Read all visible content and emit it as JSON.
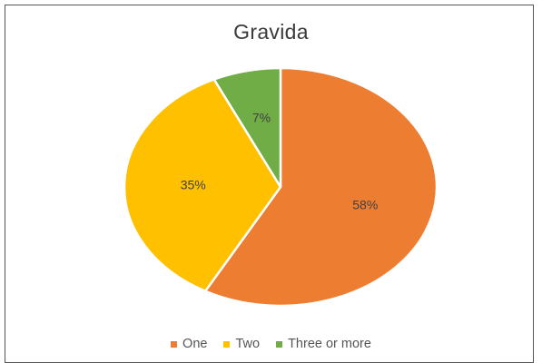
{
  "chart_data": {
    "type": "pie",
    "title": "Gravida",
    "categories": [
      "One",
      "Two",
      "Three or more"
    ],
    "values": [
      58,
      35,
      7
    ],
    "labels": [
      "58%",
      "35%",
      "7%"
    ],
    "colors": [
      "#ED7D31",
      "#FFC000",
      "#70AD47"
    ],
    "legend_position": "bottom"
  }
}
